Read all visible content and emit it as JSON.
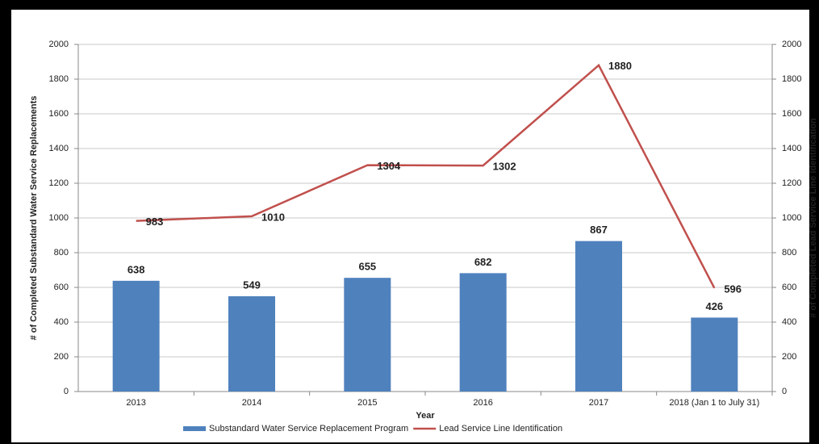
{
  "chart_data": {
    "type": "bar",
    "x_label": "Year",
    "y_label": "# of Completed Substandard Water Service Replacements",
    "y2_label": "# of Completed Lead Service Line Identification",
    "categories": [
      "2013",
      "2014",
      "2015",
      "2016",
      "2017",
      "2018 (Jan 1 to July 31)"
    ],
    "series": [
      {
        "name": "Substandard Water Service Replacement Program",
        "type": "bar",
        "color": "#4f81bd",
        "values": [
          638,
          549,
          655,
          682,
          867,
          426
        ]
      },
      {
        "name": "Lead Service Line Identification",
        "type": "line",
        "axis": "y2",
        "color": "#c0504d",
        "values": [
          983,
          1010,
          1304,
          1302,
          1880,
          596
        ]
      }
    ],
    "ylim": [
      0,
      2000
    ],
    "yticks": [
      0,
      200,
      400,
      600,
      800,
      1000,
      1200,
      1400,
      1600,
      1800,
      2000
    ],
    "y2lim": [
      0,
      2000
    ],
    "y2ticks": [
      0,
      200,
      400,
      600,
      800,
      1000,
      1200,
      1400,
      1600,
      1800,
      2000
    ],
    "grid": true,
    "legend": "bottom"
  }
}
